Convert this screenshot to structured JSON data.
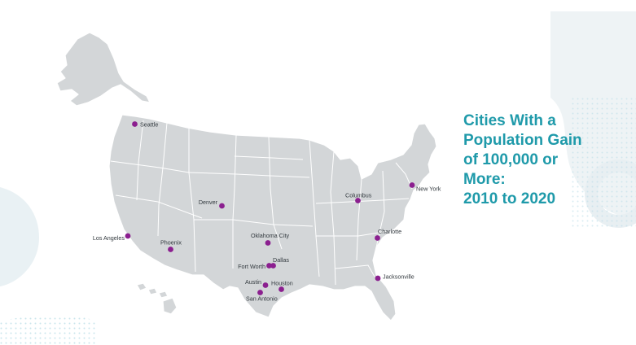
{
  "title": {
    "lines": [
      "Cities With a",
      "Population Gain",
      "of 100,000 or",
      "More:",
      "2010 to 2020"
    ]
  },
  "colors": {
    "title": "#1f9aaa",
    "marker": "#8b1f8f",
    "land": "#d3d6d8",
    "decoration": "#e6eef1"
  },
  "cities": [
    {
      "name": "Seattle",
      "label_side": "right"
    },
    {
      "name": "Los Angeles",
      "label_side": "left"
    },
    {
      "name": "Phoenix",
      "label_side": "above"
    },
    {
      "name": "Denver",
      "label_side": "left"
    },
    {
      "name": "Oklahoma City",
      "label_side": "above"
    },
    {
      "name": "Dallas",
      "label_side": "above"
    },
    {
      "name": "Fort Worth",
      "label_side": "left"
    },
    {
      "name": "Austin",
      "label_side": "left"
    },
    {
      "name": "Houston",
      "label_side": "above"
    },
    {
      "name": "San Antonio",
      "label_side": "below"
    },
    {
      "name": "Columbus",
      "label_side": "above"
    },
    {
      "name": "New York",
      "label_side": "right"
    },
    {
      "name": "Charlotte",
      "label_side": "right"
    },
    {
      "name": "Jacksonville",
      "label_side": "right"
    }
  ]
}
